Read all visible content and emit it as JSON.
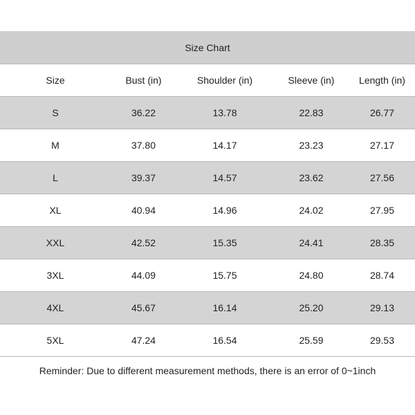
{
  "title": "Size Chart",
  "headers": [
    "Size",
    "Bust (in)",
    "Shoulder (in)",
    "Sleeve (in)",
    "Length (in)"
  ],
  "rows": [
    [
      "S",
      "36.22",
      "13.78",
      "22.83",
      "26.77"
    ],
    [
      "M",
      "37.80",
      "14.17",
      "23.23",
      "27.17"
    ],
    [
      "L",
      "39.37",
      "14.57",
      "23.62",
      "27.56"
    ],
    [
      "XL",
      "40.94",
      "14.96",
      "24.02",
      "27.95"
    ],
    [
      "XXL",
      "42.52",
      "15.35",
      "24.41",
      "28.35"
    ],
    [
      "3XL",
      "44.09",
      "15.75",
      "24.80",
      "28.74"
    ],
    [
      "4XL",
      "45.67",
      "16.14",
      "25.20",
      "29.13"
    ],
    [
      "5XL",
      "47.24",
      "16.54",
      "25.59",
      "29.53"
    ]
  ],
  "reminder": "Reminder: Due to different measurement methods, there is an error of 0~1inch",
  "colors": {
    "band": "#d4d4d4",
    "title_band": "#cfcfcf",
    "rule": "#b8b8b8"
  }
}
